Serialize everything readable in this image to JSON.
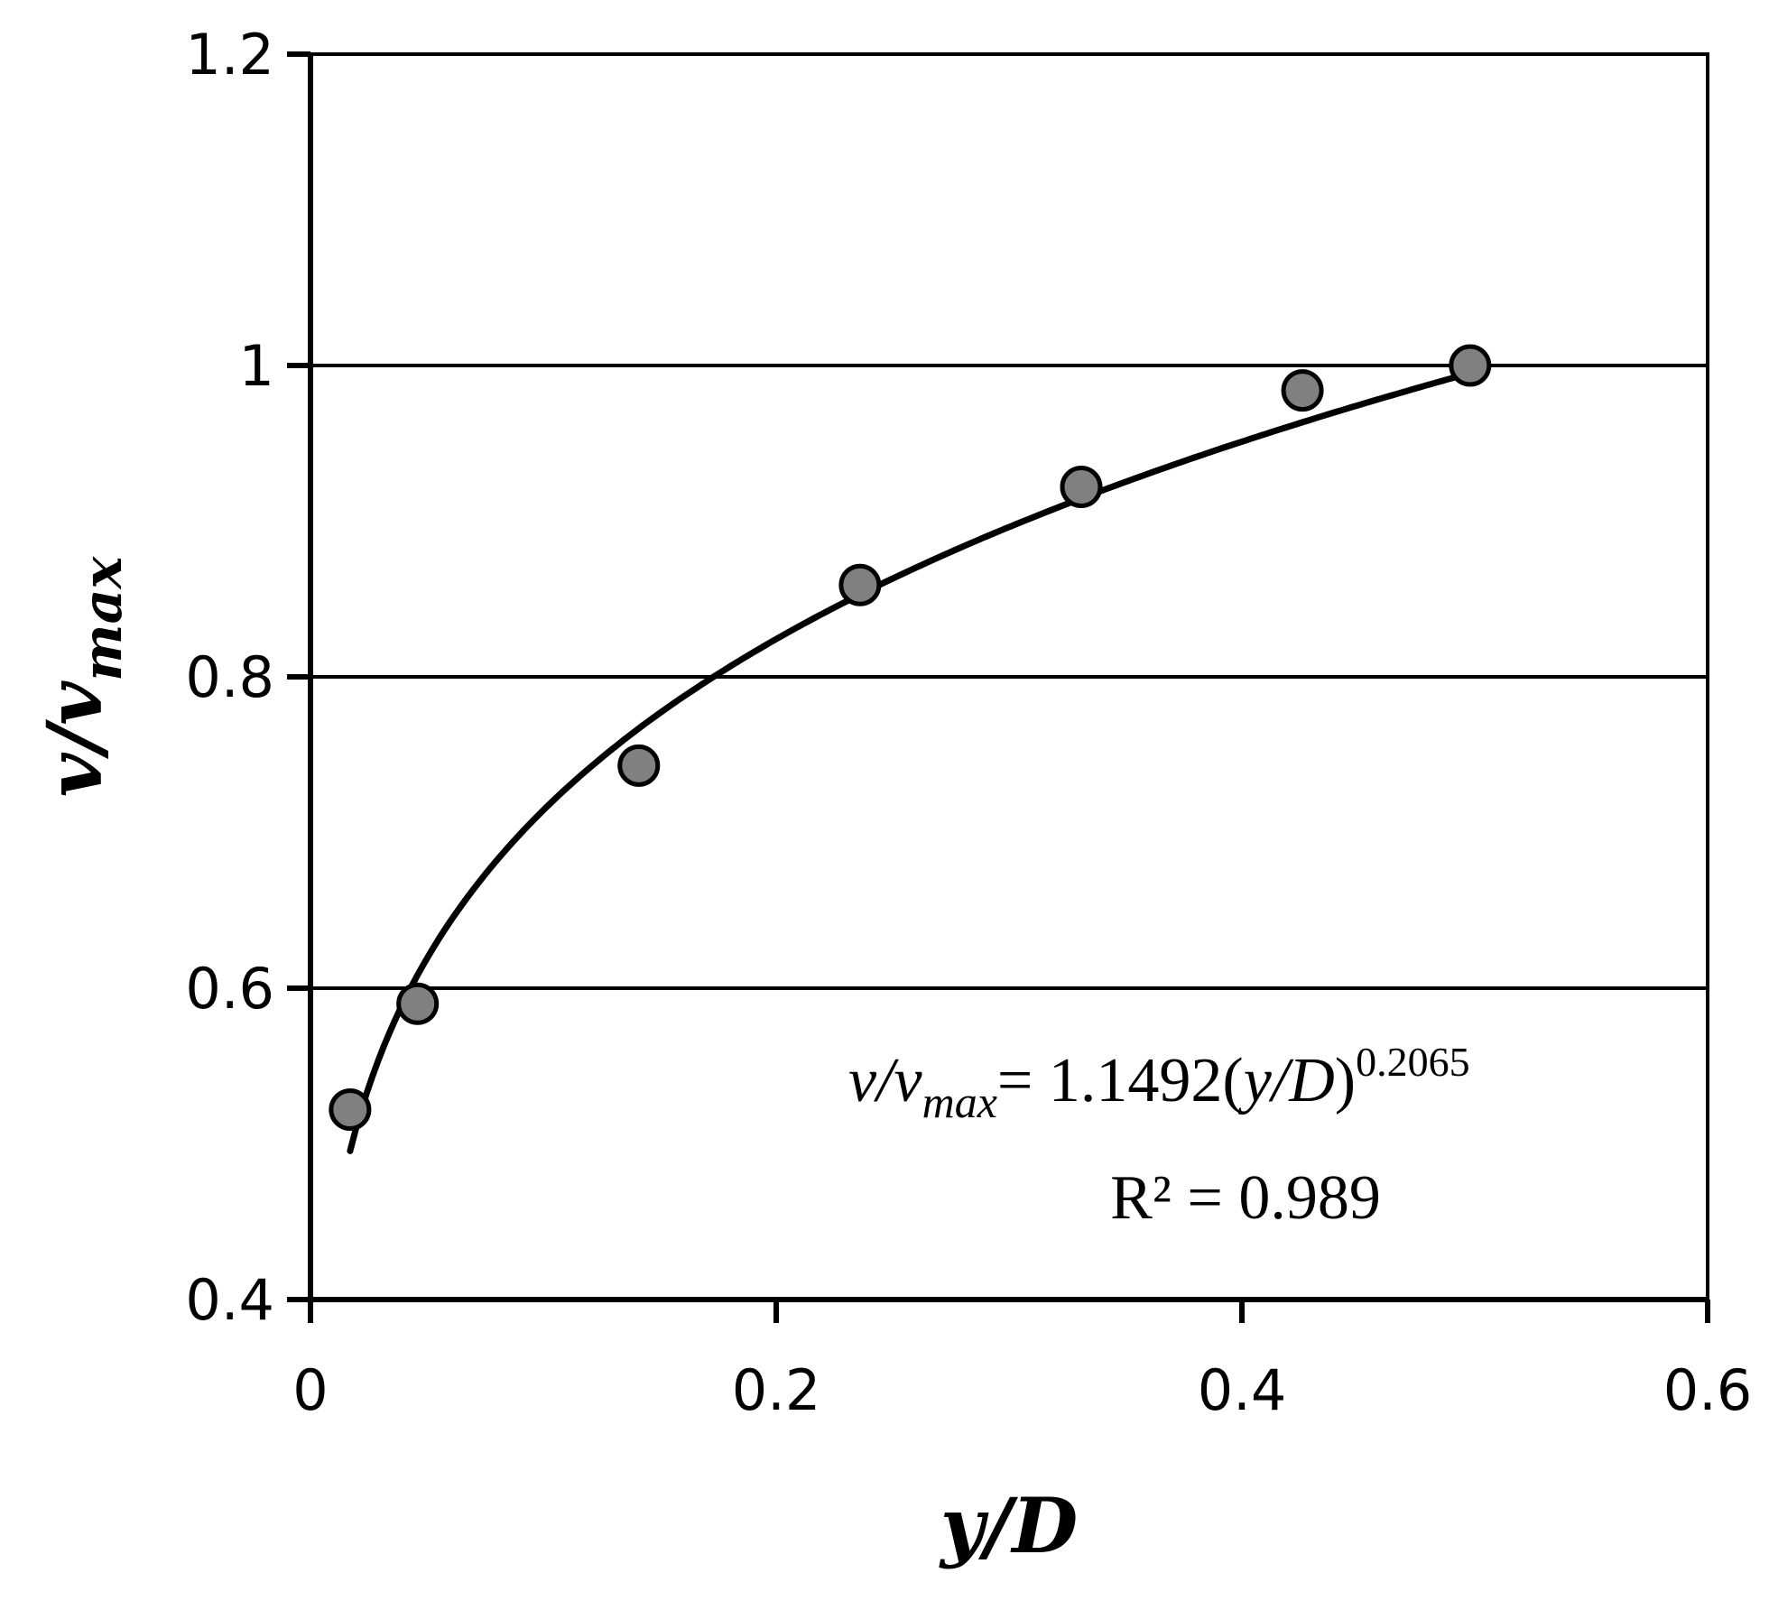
{
  "chart_data": {
    "type": "scatter",
    "xlabel": {
      "main": "y/D"
    },
    "ylabel": {
      "main": "v/v",
      "sub": "max"
    },
    "xlim": [
      0,
      0.6
    ],
    "ylim": [
      0.4,
      1.2
    ],
    "xticks": [
      "0",
      "0.2",
      "0.4",
      "0.6"
    ],
    "yticks": [
      "0.4",
      "0.6",
      "0.8",
      "1",
      "1.2"
    ],
    "grid": {
      "horizontal": true,
      "vertical": false
    },
    "series": [
      {
        "points": [
          {
            "x": 0.017,
            "y": 0.522
          },
          {
            "x": 0.046,
            "y": 0.59
          },
          {
            "x": 0.141,
            "y": 0.743
          },
          {
            "x": 0.236,
            "y": 0.859
          },
          {
            "x": 0.331,
            "y": 0.922
          },
          {
            "x": 0.426,
            "y": 0.984
          },
          {
            "x": 0.498,
            "y": 1.0
          }
        ],
        "marker_color": "#808080"
      }
    ],
    "trendline": {
      "type": "power",
      "coefficient": 1.1492,
      "exponent": 0.2065,
      "x_range": [
        0.017,
        0.498
      ],
      "color": "#000000"
    },
    "annotation": {
      "equation": {
        "lhs": "v/v",
        "lhs_sub": "max",
        "rhs_prefix": "= 1.1492(",
        "rhs_var": "y/D",
        "rhs_suffix": ")",
        "exponent": "0.2065"
      },
      "r_squared": "R² = 0.989"
    }
  }
}
